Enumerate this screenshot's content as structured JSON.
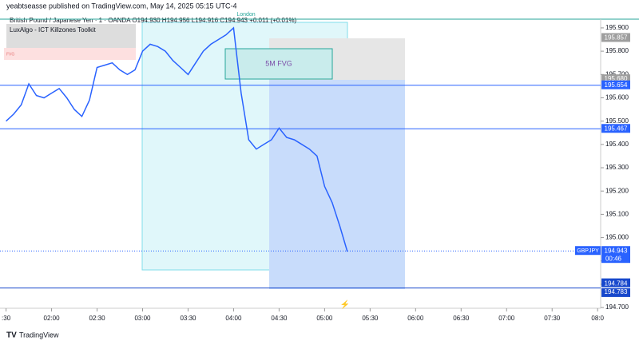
{
  "header": {
    "byline": "yeabtseasse published on TradingView.com, May 14, 2025 05:15 UTC-4",
    "symbol_line": "British Pound / Japanese Yen · 1 · OANDA  O194.930 H194.956 L194.916 C194.943 +0.011 (+0.01%)",
    "indicator": "LuxAlgo - ICT Killzones Toolkit",
    "fvg_tag": "FVG",
    "session": "London",
    "fvg_label": "5M FVG"
  },
  "footer": {
    "brand": "TradingView"
  },
  "chart_data": {
    "type": "line",
    "color": "#2962ff",
    "x": [
      90,
      95,
      100,
      105,
      110,
      115,
      120,
      125,
      130,
      135,
      140,
      145,
      150,
      155,
      160,
      165,
      170,
      175,
      180,
      185,
      190,
      195,
      200,
      205,
      210,
      215,
      220,
      225,
      230,
      235,
      240,
      245,
      250,
      255,
      260,
      265,
      270,
      275,
      280,
      285,
      290,
      295,
      300,
      305,
      310,
      315
    ],
    "series": [
      {
        "name": "GBPJPY",
        "color": "#2962ff",
        "values": [
          195.5,
          195.53,
          195.57,
          195.66,
          195.61,
          195.6,
          195.62,
          195.64,
          195.6,
          195.55,
          195.52,
          195.59,
          195.73,
          195.74,
          195.75,
          195.72,
          195.7,
          195.72,
          195.8,
          195.83,
          195.82,
          195.8,
          195.76,
          195.73,
          195.7,
          195.75,
          195.8,
          195.83,
          195.85,
          195.87,
          195.9,
          195.62,
          195.42,
          195.38,
          195.4,
          195.42,
          195.47,
          195.43,
          195.42,
          195.4,
          195.38,
          195.35,
          195.22,
          195.15,
          195.05,
          194.94
        ]
      }
    ],
    "xlim": [
      86,
      482
    ],
    "ylim": [
      194.697,
      195.934
    ],
    "xticks": [
      {
        "value": 90,
        "label": ":30"
      },
      {
        "value": 120,
        "label": "02:00"
      },
      {
        "value": 150,
        "label": "02:30"
      },
      {
        "value": 180,
        "label": "03:00"
      },
      {
        "value": 210,
        "label": "03:30"
      },
      {
        "value": 240,
        "label": "04:00"
      },
      {
        "value": 270,
        "label": "04:30"
      },
      {
        "value": 300,
        "label": "05:00"
      },
      {
        "value": 330,
        "label": "05:30"
      },
      {
        "value": 360,
        "label": "06:00"
      },
      {
        "value": 390,
        "label": "06:30"
      },
      {
        "value": 420,
        "label": "07:00"
      },
      {
        "value": 450,
        "label": "07:30"
      },
      {
        "value": 480,
        "label": "08:0"
      }
    ],
    "yticks": [
      {
        "value": 194.7,
        "label": "194.700"
      },
      {
        "value": 194.8,
        "label": "194.800"
      },
      {
        "value": 194.9,
        "label": "194.900"
      },
      {
        "value": 195.0,
        "label": "195.000"
      },
      {
        "value": 195.1,
        "label": "195.100"
      },
      {
        "value": 195.2,
        "label": "195.200"
      },
      {
        "value": 195.3,
        "label": "195.300"
      },
      {
        "value": 195.4,
        "label": "195.400"
      },
      {
        "value": 195.5,
        "label": "195.500"
      },
      {
        "value": 195.6,
        "label": "195.600"
      },
      {
        "value": 195.7,
        "label": "195.700"
      },
      {
        "value": 195.8,
        "label": "195.800"
      },
      {
        "value": 195.9,
        "label": "195.900"
      }
    ],
    "levels": [
      {
        "value": 195.857,
        "color": "#9e9e9e"
      },
      {
        "value": {
          "value": 195.68,
          "label": "195.680"
        },
        "color": "#9e9e9e"
      },
      {
        "value": 195.654,
        "color": "#2962ff"
      },
      {
        "value": 195.467,
        "color": "#2962ff"
      },
      {
        "value": 194.784,
        "color": "#1848cc"
      },
      {
        "value": 194.783,
        "color": "#1848cc"
      }
    ],
    "current": {
      "symbol": "GBPJPY",
      "price": 194.943,
      "countdown": "00:46"
    }
  }
}
